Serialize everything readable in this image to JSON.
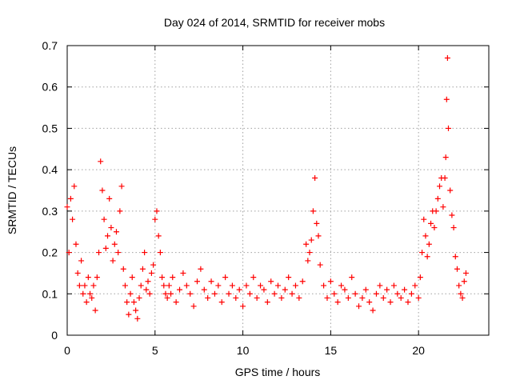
{
  "chart_data": {
    "type": "scatter",
    "title": "Day 024 of 2014, SRMTID for receiver mobs",
    "xlabel": "GPS time / hours",
    "ylabel": "SRMTID / TECUs",
    "xlim": [
      0,
      24
    ],
    "ylim": [
      0,
      0.7
    ],
    "xticks": [
      0,
      5,
      10,
      15,
      20
    ],
    "yticks": [
      0,
      0.1,
      0.2,
      0.3,
      0.4,
      0.5,
      0.6,
      0.7
    ],
    "xtick_labels": [
      "0",
      "5",
      "10",
      "15",
      "20"
    ],
    "ytick_labels": [
      "0",
      "0.1",
      "0.2",
      "0.3",
      "0.4",
      "0.5",
      "0.6",
      "0.7"
    ],
    "grid": true,
    "marker": "+",
    "color": "#ff0000",
    "series": [
      {
        "name": "SRMTID",
        "x": [
          0.0,
          0.1,
          0.2,
          0.3,
          0.4,
          0.5,
          0.6,
          0.7,
          0.8,
          0.9,
          1.0,
          1.1,
          1.2,
          1.3,
          1.4,
          1.5,
          1.6,
          1.7,
          1.8,
          1.9,
          2.0,
          2.1,
          2.2,
          2.3,
          2.4,
          2.5,
          2.6,
          2.7,
          2.8,
          2.9,
          3.0,
          3.1,
          3.2,
          3.3,
          3.4,
          3.5,
          3.6,
          3.7,
          3.8,
          3.9,
          4.0,
          4.1,
          4.2,
          4.3,
          4.4,
          4.5,
          4.6,
          4.7,
          4.8,
          4.9,
          5.0,
          5.1,
          5.2,
          5.3,
          5.4,
          5.5,
          5.6,
          5.7,
          5.8,
          5.9,
          6.0,
          6.2,
          6.4,
          6.6,
          6.8,
          7.0,
          7.2,
          7.4,
          7.6,
          7.8,
          8.0,
          8.2,
          8.4,
          8.6,
          8.8,
          9.0,
          9.2,
          9.4,
          9.6,
          9.8,
          10.0,
          10.2,
          10.4,
          10.6,
          10.8,
          11.0,
          11.2,
          11.4,
          11.6,
          11.8,
          12.0,
          12.2,
          12.4,
          12.6,
          12.8,
          13.0,
          13.2,
          13.4,
          13.6,
          13.7,
          13.8,
          13.9,
          14.0,
          14.1,
          14.2,
          14.3,
          14.4,
          14.6,
          14.8,
          15.0,
          15.2,
          15.4,
          15.6,
          15.8,
          16.0,
          16.2,
          16.4,
          16.6,
          16.8,
          17.0,
          17.2,
          17.4,
          17.6,
          17.8,
          18.0,
          18.2,
          18.4,
          18.6,
          18.8,
          19.0,
          19.2,
          19.4,
          19.6,
          19.8,
          20.0,
          20.1,
          20.2,
          20.3,
          20.4,
          20.5,
          20.6,
          20.7,
          20.8,
          20.9,
          21.0,
          21.1,
          21.2,
          21.3,
          21.4,
          21.5,
          21.55,
          21.6,
          21.65,
          21.7,
          21.8,
          21.9,
          22.0,
          22.1,
          22.2,
          22.3,
          22.4,
          22.5,
          22.6,
          22.7
        ],
        "y": [
          0.31,
          0.2,
          0.33,
          0.28,
          0.36,
          0.22,
          0.15,
          0.12,
          0.18,
          0.1,
          0.12,
          0.08,
          0.14,
          0.1,
          0.09,
          0.12,
          0.06,
          0.14,
          0.2,
          0.42,
          0.35,
          0.28,
          0.21,
          0.24,
          0.33,
          0.26,
          0.18,
          0.22,
          0.25,
          0.2,
          0.3,
          0.36,
          0.16,
          0.12,
          0.08,
          0.05,
          0.1,
          0.14,
          0.08,
          0.06,
          0.04,
          0.09,
          0.12,
          0.16,
          0.2,
          0.11,
          0.13,
          0.1,
          0.15,
          0.17,
          0.28,
          0.3,
          0.24,
          0.2,
          0.14,
          0.12,
          0.1,
          0.09,
          0.12,
          0.1,
          0.14,
          0.08,
          0.11,
          0.15,
          0.12,
          0.1,
          0.07,
          0.13,
          0.16,
          0.11,
          0.09,
          0.13,
          0.1,
          0.12,
          0.08,
          0.14,
          0.1,
          0.12,
          0.09,
          0.11,
          0.07,
          0.12,
          0.1,
          0.14,
          0.09,
          0.12,
          0.11,
          0.08,
          0.13,
          0.1,
          0.12,
          0.09,
          0.11,
          0.14,
          0.1,
          0.12,
          0.09,
          0.13,
          0.22,
          0.18,
          0.2,
          0.23,
          0.3,
          0.38,
          0.27,
          0.24,
          0.17,
          0.12,
          0.09,
          0.13,
          0.1,
          0.08,
          0.12,
          0.11,
          0.09,
          0.14,
          0.1,
          0.07,
          0.09,
          0.11,
          0.08,
          0.06,
          0.1,
          0.12,
          0.09,
          0.11,
          0.08,
          0.12,
          0.1,
          0.09,
          0.11,
          0.08,
          0.1,
          0.12,
          0.09,
          0.14,
          0.2,
          0.28,
          0.24,
          0.19,
          0.22,
          0.27,
          0.3,
          0.26,
          0.3,
          0.33,
          0.36,
          0.38,
          0.31,
          0.38,
          0.43,
          0.57,
          0.67,
          0.5,
          0.35,
          0.29,
          0.26,
          0.19,
          0.16,
          0.12,
          0.1,
          0.09,
          0.13,
          0.15
        ]
      }
    ]
  }
}
